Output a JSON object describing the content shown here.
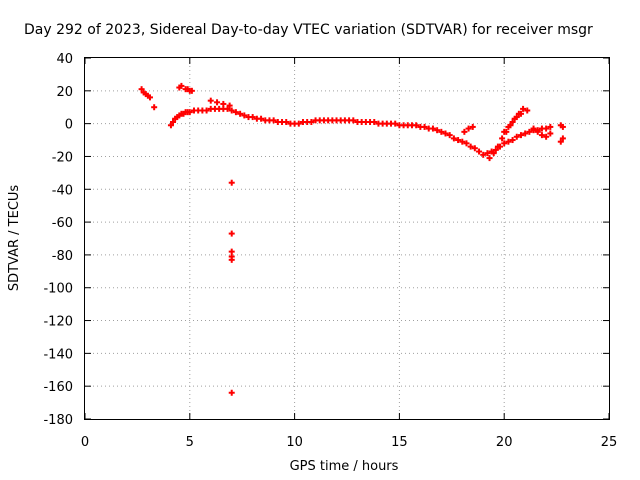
{
  "chart_data": {
    "type": "scatter",
    "title": "Day 292 of 2023, Sidereal Day-to-day VTEC variation (SDTVAR) for receiver msgr",
    "xlabel": "GPS time / hours",
    "ylabel": "SDTVAR / TECUs",
    "xlim": [
      0,
      25
    ],
    "ylim": [
      -180,
      40
    ],
    "xticks": [
      0,
      5,
      10,
      15,
      20,
      25
    ],
    "yticks": [
      -180,
      -160,
      -140,
      -120,
      -100,
      -80,
      -60,
      -40,
      -20,
      0,
      20,
      40
    ],
    "grid": true,
    "marker": "+",
    "color": "#ff0000",
    "series": [
      {
        "name": "SDTVAR",
        "x": [
          2.7,
          2.8,
          2.9,
          3.0,
          3.1,
          3.3,
          4.5,
          4.6,
          4.8,
          4.9,
          5.0,
          5.1,
          4.1,
          4.2,
          4.3,
          4.4,
          4.5,
          4.6,
          4.7,
          4.8,
          4.9,
          5.0,
          5.2,
          5.4,
          5.6,
          5.8,
          6.0,
          6.2,
          6.4,
          6.6,
          6.8,
          7.0,
          7.2,
          7.4,
          7.6,
          7.8,
          8.0,
          8.2,
          8.4,
          8.6,
          8.8,
          9.0,
          9.2,
          9.4,
          9.6,
          9.8,
          10.0,
          10.2,
          10.4,
          10.6,
          10.8,
          11.0,
          11.2,
          11.4,
          11.6,
          11.8,
          12.0,
          12.2,
          12.4,
          12.6,
          12.8,
          13.0,
          13.2,
          13.4,
          13.6,
          13.8,
          14.0,
          14.2,
          14.4,
          14.6,
          14.8,
          15.0,
          15.2,
          15.4,
          15.6,
          15.8,
          16.0,
          16.2,
          16.4,
          16.6,
          16.8,
          17.0,
          17.2,
          17.4,
          17.6,
          17.8,
          18.0,
          18.2,
          18.4,
          18.6,
          18.8,
          19.0,
          19.2,
          19.4,
          19.6,
          19.8,
          20.0,
          20.2,
          20.4,
          20.6,
          20.8,
          21.0,
          21.2,
          21.4,
          21.6,
          21.8,
          22.0,
          22.2,
          18.1,
          18.3,
          18.5,
          19.3,
          19.5,
          19.7,
          19.9,
          20.1,
          20.3,
          20.5,
          20.7,
          20.9,
          21.1,
          20.0,
          20.2,
          20.4,
          20.6,
          20.8,
          21.4,
          21.6,
          21.8,
          22.0,
          22.2,
          22.7,
          22.8,
          22.7,
          22.8,
          6.0,
          6.3,
          6.6,
          6.9,
          7.0,
          7.0,
          7.0,
          7.0,
          7.0,
          7.0
        ],
        "y": [
          21,
          19,
          18,
          17,
          16,
          10,
          22,
          23,
          21,
          21,
          20,
          20,
          -1,
          1,
          3,
          4,
          5,
          6,
          6,
          7,
          7,
          7,
          8,
          8,
          8,
          8,
          9,
          9,
          9,
          9,
          9,
          8,
          7,
          6,
          5,
          4,
          4,
          3,
          3,
          2,
          2,
          2,
          1,
          1,
          1,
          0,
          0,
          0,
          1,
          1,
          1,
          2,
          2,
          2,
          2,
          2,
          2,
          2,
          2,
          2,
          2,
          1,
          1,
          1,
          1,
          1,
          0,
          0,
          0,
          0,
          0,
          -1,
          -1,
          -1,
          -1,
          -1,
          -2,
          -2,
          -3,
          -3,
          -4,
          -5,
          -6,
          -7,
          -9,
          -10,
          -11,
          -12,
          -14,
          -15,
          -17,
          -19,
          -18,
          -17,
          -16,
          -14,
          -12,
          -11,
          -10,
          -8,
          -7,
          -6,
          -5,
          -4,
          -4,
          -3,
          -3,
          -2,
          -5,
          -3,
          -2,
          -21,
          -18,
          -14,
          -9,
          -5,
          -1,
          3,
          6,
          9,
          8,
          -5,
          -2,
          1,
          4,
          6,
          -3,
          -5,
          -7,
          -8,
          -6,
          -1,
          -2,
          -11,
          -9,
          14,
          13,
          12,
          11,
          -36,
          -67,
          -78,
          -81,
          -83,
          -164
        ]
      }
    ]
  }
}
